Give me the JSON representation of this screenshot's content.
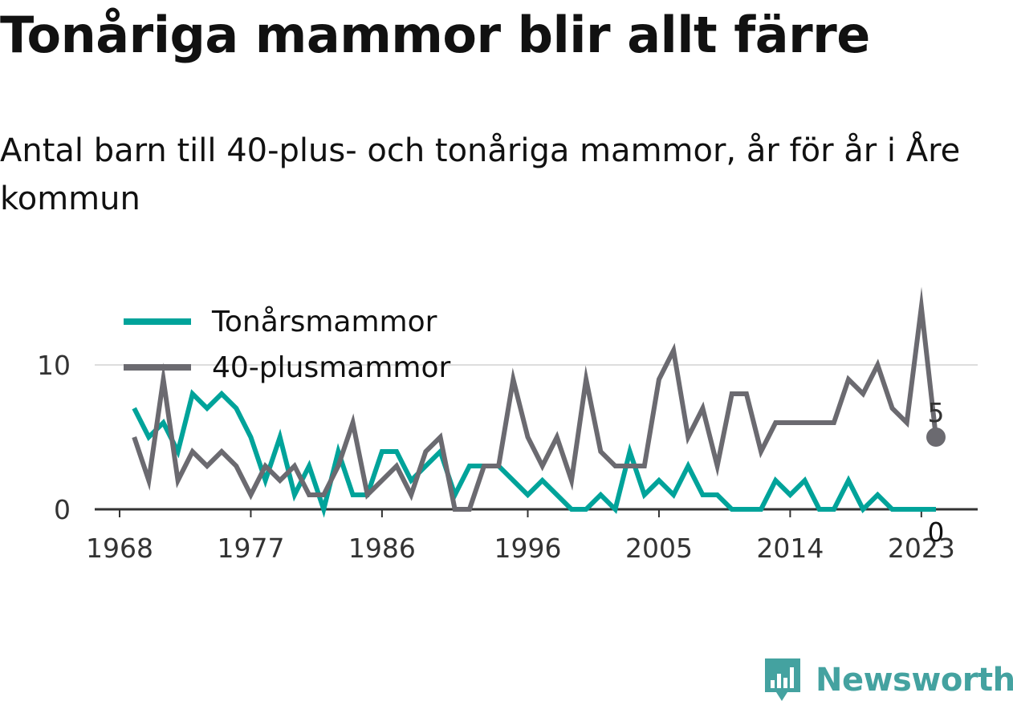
{
  "title": "Tonåriga mammor blir allt färre",
  "subtitle": "Antal barn till 40-plus- och tonåriga mammor, år för år i Åre kommun",
  "brand": {
    "name": "Newsworthy",
    "color": "#44a2a0"
  },
  "chart_data": {
    "type": "line",
    "x_tick_labels": [
      "1968",
      "1977",
      "1986",
      "1996",
      "2005",
      "2014",
      "2023"
    ],
    "y_tick_labels": [
      "0",
      "10"
    ],
    "ylim": [
      0,
      15
    ],
    "grid": true,
    "legend_position": "top-left",
    "x": [
      1969,
      1970,
      1971,
      1972,
      1973,
      1974,
      1975,
      1976,
      1977,
      1978,
      1979,
      1980,
      1981,
      1982,
      1983,
      1984,
      1985,
      1986,
      1987,
      1988,
      1989,
      1990,
      1991,
      1992,
      1993,
      1994,
      1995,
      1996,
      1997,
      1998,
      1999,
      2000,
      2001,
      2002,
      2003,
      2004,
      2005,
      2006,
      2007,
      2008,
      2009,
      2010,
      2011,
      2012,
      2013,
      2014,
      2015,
      2016,
      2017,
      2018,
      2019,
      2020,
      2021,
      2022,
      2023,
      2024
    ],
    "series": [
      {
        "name": "Tonårsmammor",
        "color": "#00a39a",
        "values": [
          7,
          5,
          6,
          4,
          8,
          7,
          8,
          7,
          5,
          2,
          5,
          1,
          3,
          0,
          4,
          1,
          1,
          4,
          4,
          2,
          3,
          4,
          1,
          3,
          3,
          3,
          2,
          1,
          2,
          1,
          0,
          0,
          1,
          0,
          4,
          1,
          2,
          1,
          3,
          1,
          1,
          0,
          0,
          0,
          2,
          1,
          2,
          0,
          0,
          2,
          0,
          1,
          0,
          0,
          0,
          0
        ],
        "end_label": "0"
      },
      {
        "name": "40-plusmammor",
        "color": "#6b6a70",
        "values": [
          5,
          2,
          9,
          2,
          4,
          3,
          4,
          3,
          1,
          3,
          2,
          3,
          1,
          1,
          3,
          6,
          1,
          2,
          3,
          1,
          4,
          5,
          0,
          0,
          3,
          3,
          9,
          5,
          3,
          5,
          2,
          9,
          4,
          3,
          3,
          3,
          9,
          11,
          5,
          7,
          3,
          8,
          8,
          4,
          6,
          6,
          6,
          6,
          6,
          9,
          8,
          10,
          7,
          6,
          14,
          5
        ],
        "end_label": "5"
      }
    ]
  }
}
